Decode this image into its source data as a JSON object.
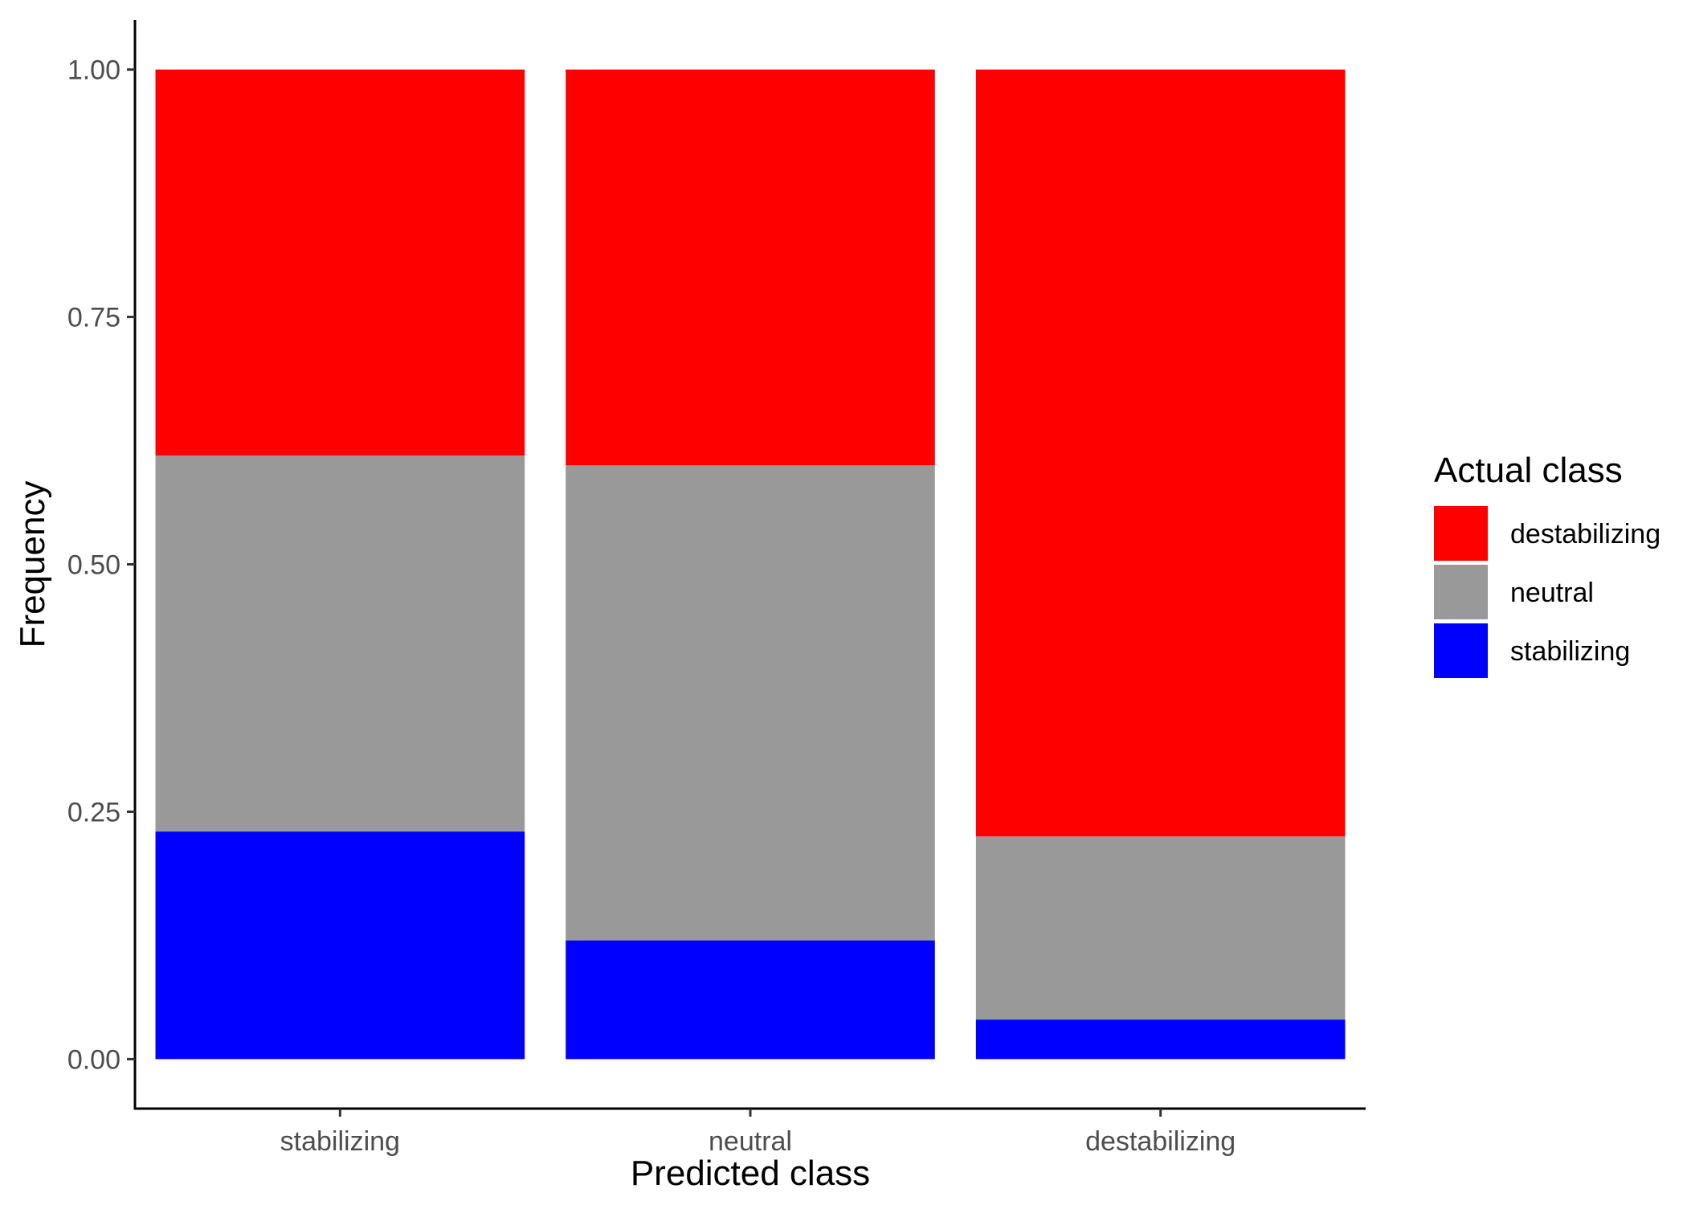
{
  "chart_data": {
    "type": "bar",
    "stacked": true,
    "categories": [
      "stabilizing",
      "neutral",
      "destabilizing"
    ],
    "series": [
      {
        "name": "stabilizing",
        "color": "#0000FF",
        "values": [
          0.23,
          0.12,
          0.04
        ]
      },
      {
        "name": "neutral",
        "color": "#999999",
        "values": [
          0.38,
          0.48,
          0.185
        ]
      },
      {
        "name": "destabilizing",
        "color": "#FF0000",
        "values": [
          0.39,
          0.4,
          0.775
        ]
      }
    ],
    "xlabel": "Predicted class",
    "ylabel": "Frequency",
    "ylim": [
      -0.05,
      1.05
    ],
    "yticks": [
      "0.00",
      "0.25",
      "0.50",
      "0.75",
      "1.00"
    ],
    "ytick_values": [
      0,
      0.25,
      0.5,
      0.75,
      1.0
    ],
    "grid": false,
    "legend": {
      "title": "Actual class",
      "position": "right",
      "entries": [
        "destabilizing",
        "neutral",
        "stabilizing"
      ]
    }
  }
}
